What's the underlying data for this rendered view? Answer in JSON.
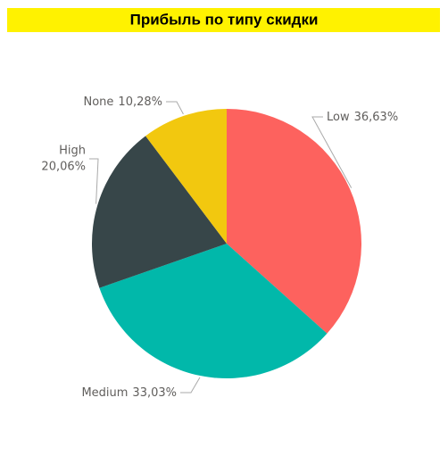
{
  "chart_data": {
    "type": "pie",
    "title": "Прибыль по типу скидки",
    "categories": [
      "Low",
      "Medium",
      "High",
      "None"
    ],
    "values": [
      36.63,
      33.03,
      20.06,
      10.28
    ],
    "value_labels": [
      "36,63%",
      "33,03%",
      "20,06%",
      "10,28%"
    ],
    "colors": [
      "#FD625E",
      "#01B8AA",
      "#374649",
      "#F2C80F"
    ],
    "title_background": "#FFF200"
  }
}
